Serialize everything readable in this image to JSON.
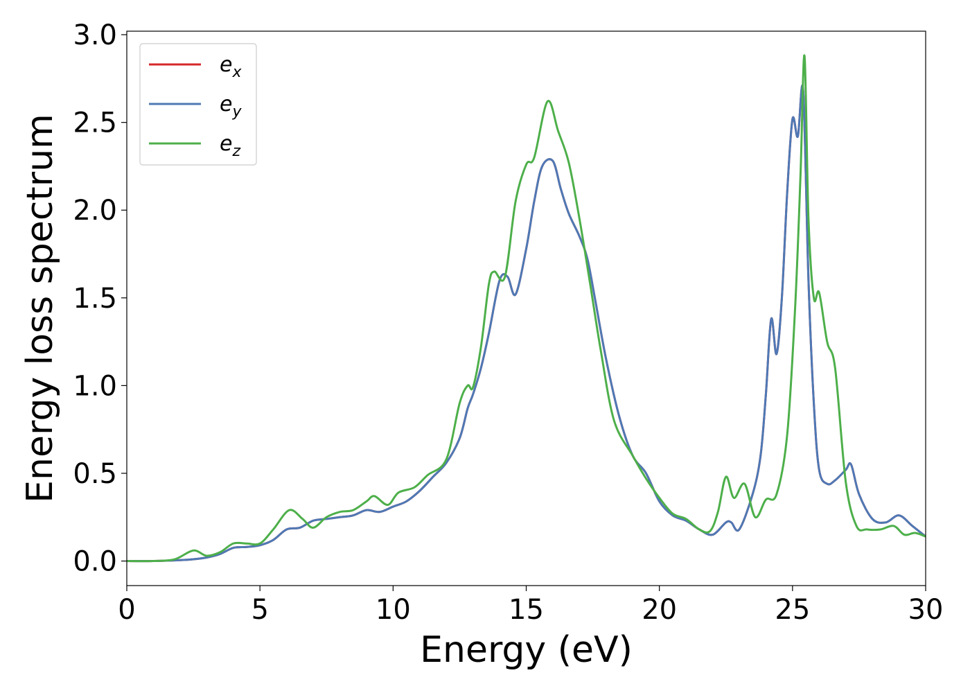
{
  "chart_data": {
    "type": "line",
    "title": "",
    "xlabel": "Energy (eV)",
    "ylabel": "Energy loss spectrum",
    "xlim": [
      0,
      30
    ],
    "ylim": [
      -0.14,
      3.02
    ],
    "xticks": [
      "0",
      "5",
      "10",
      "15",
      "20",
      "25",
      "30"
    ],
    "yticks": [
      "0.0",
      "0.5",
      "1.0",
      "1.5",
      "2.0",
      "2.5",
      "3.0"
    ],
    "grid": false,
    "legend_position": "top-left",
    "series": [
      {
        "name": "e_x",
        "label_base": "e",
        "label_sub": "x",
        "color": "#d62728",
        "x": [
          0,
          1,
          2,
          2.5,
          3,
          3.5,
          4,
          4.5,
          5,
          5.5,
          6,
          6.5,
          7,
          7.5,
          8,
          8.5,
          9,
          9.5,
          10,
          10.5,
          11,
          11.5,
          12,
          12.5,
          12.8,
          13,
          13.3,
          13.6,
          14,
          14.3,
          14.6,
          15,
          15.3,
          15.6,
          16,
          16.3,
          16.6,
          17,
          17.3,
          17.6,
          18,
          18.5,
          19,
          19.5,
          20,
          20.5,
          21,
          21.5,
          22,
          22.5,
          22.7,
          23,
          23.5,
          23.8,
          24,
          24.2,
          24.4,
          24.6,
          24.8,
          25,
          25.2,
          25.4,
          25.6,
          25.8,
          26,
          26.3,
          26.6,
          27,
          27.2,
          27.5,
          28,
          28.5,
          29,
          29.5,
          30
        ],
        "values": [
          0,
          0,
          0.005,
          0.01,
          0.02,
          0.04,
          0.075,
          0.08,
          0.09,
          0.12,
          0.18,
          0.19,
          0.23,
          0.24,
          0.25,
          0.26,
          0.29,
          0.28,
          0.31,
          0.34,
          0.4,
          0.48,
          0.56,
          0.7,
          0.87,
          0.95,
          1.1,
          1.3,
          1.6,
          1.62,
          1.52,
          1.78,
          2.05,
          2.25,
          2.28,
          2.12,
          1.98,
          1.85,
          1.72,
          1.48,
          1.15,
          0.82,
          0.6,
          0.5,
          0.34,
          0.26,
          0.23,
          0.18,
          0.15,
          0.22,
          0.22,
          0.18,
          0.38,
          0.6,
          0.95,
          1.38,
          1.18,
          1.5,
          2.1,
          2.52,
          2.42,
          2.68,
          1.6,
          0.9,
          0.52,
          0.44,
          0.46,
          0.52,
          0.55,
          0.38,
          0.24,
          0.22,
          0.26,
          0.2,
          0.14
        ]
      },
      {
        "name": "e_y",
        "label_base": "e",
        "label_sub": "y",
        "color": "#4e79b5",
        "x": [
          0,
          1,
          2,
          2.5,
          3,
          3.5,
          4,
          4.5,
          5,
          5.5,
          6,
          6.5,
          7,
          7.5,
          8,
          8.5,
          9,
          9.5,
          10,
          10.5,
          11,
          11.5,
          12,
          12.5,
          12.8,
          13,
          13.3,
          13.6,
          14,
          14.3,
          14.6,
          15,
          15.3,
          15.6,
          16,
          16.3,
          16.6,
          17,
          17.3,
          17.6,
          18,
          18.5,
          19,
          19.5,
          20,
          20.5,
          21,
          21.5,
          22,
          22.5,
          22.7,
          23,
          23.5,
          23.8,
          24,
          24.2,
          24.4,
          24.6,
          24.8,
          25,
          25.2,
          25.4,
          25.6,
          25.8,
          26,
          26.3,
          26.6,
          27,
          27.2,
          27.5,
          28,
          28.5,
          29,
          29.5,
          30
        ],
        "values": [
          0,
          0,
          0.005,
          0.01,
          0.02,
          0.04,
          0.075,
          0.08,
          0.09,
          0.12,
          0.18,
          0.19,
          0.23,
          0.24,
          0.25,
          0.26,
          0.29,
          0.28,
          0.31,
          0.34,
          0.4,
          0.48,
          0.56,
          0.7,
          0.87,
          0.95,
          1.1,
          1.3,
          1.6,
          1.62,
          1.52,
          1.78,
          2.05,
          2.25,
          2.28,
          2.12,
          1.98,
          1.85,
          1.72,
          1.48,
          1.15,
          0.82,
          0.6,
          0.5,
          0.34,
          0.26,
          0.23,
          0.18,
          0.15,
          0.22,
          0.22,
          0.18,
          0.38,
          0.6,
          0.95,
          1.38,
          1.18,
          1.5,
          2.1,
          2.52,
          2.42,
          2.68,
          1.6,
          0.9,
          0.52,
          0.44,
          0.46,
          0.52,
          0.55,
          0.38,
          0.24,
          0.22,
          0.26,
          0.2,
          0.14
        ]
      },
      {
        "name": "e_z",
        "label_base": "e",
        "label_sub": "z",
        "color": "#4daf4a",
        "x": [
          0,
          1,
          1.8,
          2.5,
          3,
          3.5,
          4,
          4.5,
          5,
          5.5,
          6.1,
          6.6,
          7,
          7.5,
          8,
          8.5,
          9,
          9.3,
          9.8,
          10.2,
          10.8,
          11.3,
          12,
          12.5,
          12.8,
          13,
          13.3,
          13.6,
          13.8,
          14.2,
          14.6,
          15,
          15.3,
          15.8,
          16.2,
          16.6,
          17,
          17.4,
          17.8,
          18.3,
          19,
          19.5,
          20,
          20.5,
          21,
          21.5,
          21.9,
          22.2,
          22.5,
          22.8,
          23.2,
          23.6,
          24,
          24.4,
          24.8,
          25.1,
          25.3,
          25.45,
          25.6,
          25.8,
          26,
          26.3,
          26.6,
          27,
          27.4,
          27.8,
          28.3,
          28.8,
          29.2,
          29.6,
          30
        ],
        "values": [
          0,
          0,
          0.01,
          0.06,
          0.03,
          0.05,
          0.1,
          0.1,
          0.1,
          0.18,
          0.29,
          0.24,
          0.19,
          0.25,
          0.28,
          0.29,
          0.34,
          0.37,
          0.32,
          0.39,
          0.42,
          0.49,
          0.58,
          0.9,
          1.0,
          0.99,
          1.22,
          1.58,
          1.65,
          1.62,
          2.05,
          2.26,
          2.3,
          2.62,
          2.45,
          2.27,
          1.95,
          1.58,
          1.2,
          0.8,
          0.6,
          0.47,
          0.36,
          0.27,
          0.24,
          0.18,
          0.17,
          0.28,
          0.48,
          0.36,
          0.44,
          0.25,
          0.35,
          0.38,
          0.72,
          1.45,
          2.2,
          2.88,
          1.95,
          1.5,
          1.53,
          1.25,
          1.1,
          0.45,
          0.2,
          0.18,
          0.18,
          0.2,
          0.15,
          0.16,
          0.14
        ]
      }
    ]
  }
}
